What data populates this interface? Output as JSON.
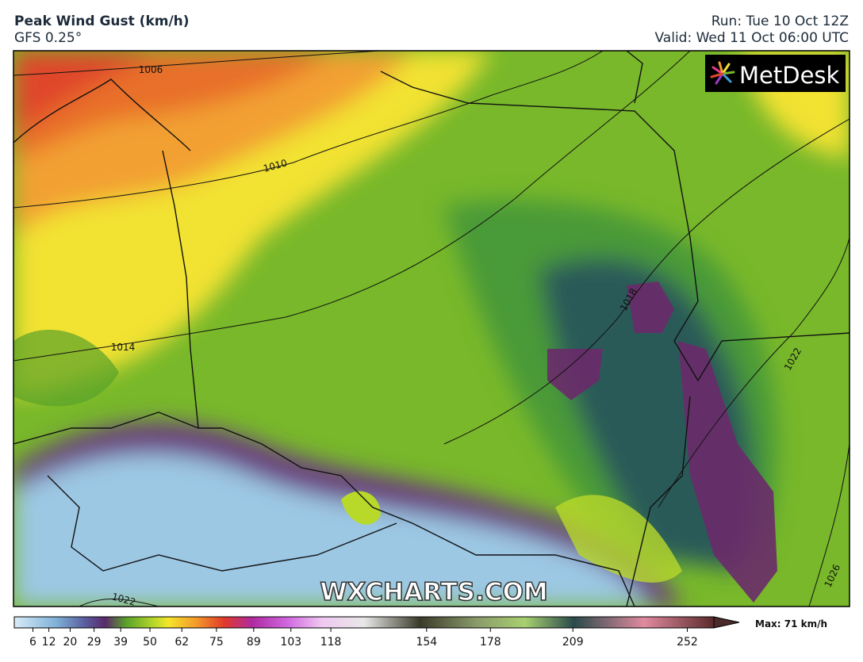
{
  "header": {
    "title": "Peak Wind Gust (km/h)",
    "subtitle": "GFS 0.25°",
    "run": "Run: Tue 10 Oct 12Z",
    "valid": "Valid: Wed 11 Oct 06:00 UTC"
  },
  "map": {
    "isobars": [
      1006,
      1010,
      1014,
      1018,
      1022,
      1026,
      1022
    ],
    "watermark": "WXCHARTS.COM",
    "logo": "MetDesk"
  },
  "colorbar": {
    "range": [
      -1,
      262
    ],
    "ticks": [
      6,
      12,
      20,
      29,
      39,
      50,
      62,
      75,
      89,
      103,
      118,
      154,
      178,
      209,
      252
    ],
    "max_label": "Max: 71 km/h"
  }
}
